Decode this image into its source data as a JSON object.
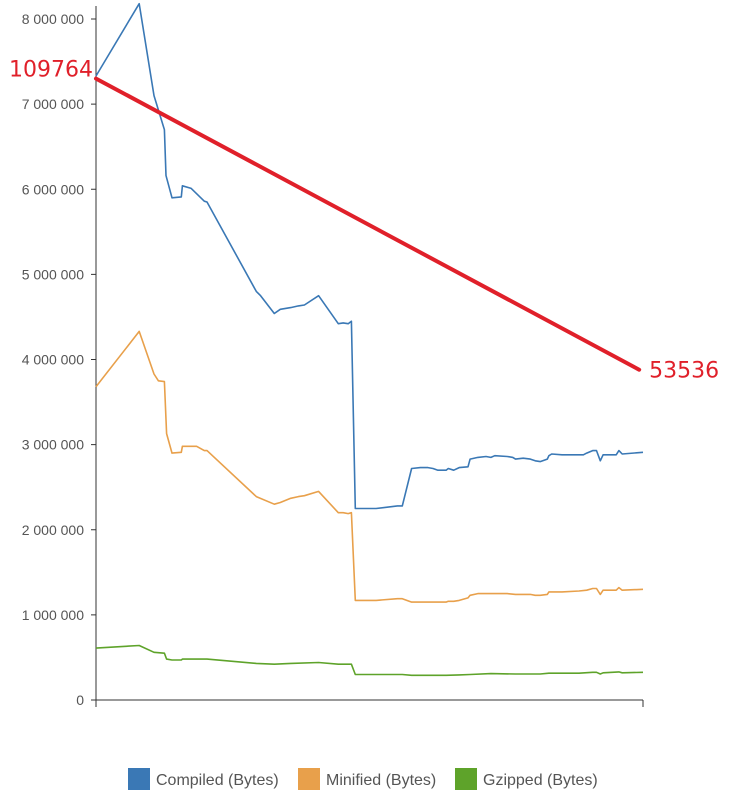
{
  "chart_data": {
    "type": "line",
    "xlim": [
      0,
      100
    ],
    "ylim": [
      0,
      8000000
    ],
    "yticks": [
      0,
      1000000,
      2000000,
      3000000,
      4000000,
      5000000,
      6000000,
      7000000,
      8000000
    ],
    "ytick_labels": [
      "0",
      "1 000 000",
      "2 000 000",
      "3 000 000",
      "4 000 000",
      "5 000 000",
      "6 000 000",
      "7 000 000",
      "8 000 000"
    ],
    "grid": false,
    "legend_position": "bottom",
    "series": [
      {
        "name": "Compiled (Bytes)",
        "color": "#3a78b5",
        "points": [
          [
            0,
            7330000
          ],
          [
            7.9,
            8180000
          ],
          [
            10.6,
            7100000
          ],
          [
            12.5,
            6700000
          ],
          [
            12.8,
            6160000
          ],
          [
            13.9,
            5900000
          ],
          [
            15.6,
            5910000
          ],
          [
            15.8,
            6040000
          ],
          [
            17.4,
            6010000
          ],
          [
            19.8,
            5860000
          ],
          [
            20.3,
            5850000
          ],
          [
            29.3,
            4800000
          ],
          [
            30.1,
            4750000
          ],
          [
            32.6,
            4540000
          ],
          [
            33.7,
            4590000
          ],
          [
            35.6,
            4610000
          ],
          [
            37.0,
            4630000
          ],
          [
            38.1,
            4640000
          ],
          [
            40.7,
            4750000
          ],
          [
            44.3,
            4420000
          ],
          [
            45.2,
            4430000
          ],
          [
            46.1,
            4420000
          ],
          [
            46.7,
            4450000
          ],
          [
            47.4,
            2250000
          ],
          [
            51.2,
            2250000
          ],
          [
            55.1,
            2280000
          ],
          [
            56.0,
            2280000
          ],
          [
            57.7,
            2720000
          ],
          [
            59.3,
            2730000
          ],
          [
            60.7,
            2730000
          ],
          [
            61.6,
            2720000
          ],
          [
            62.5,
            2700000
          ],
          [
            64.0,
            2700000
          ],
          [
            64.4,
            2720000
          ],
          [
            65.4,
            2700000
          ],
          [
            66.4,
            2730000
          ],
          [
            68.0,
            2740000
          ],
          [
            68.4,
            2830000
          ],
          [
            69.8,
            2850000
          ],
          [
            71.3,
            2860000
          ],
          [
            72.2,
            2850000
          ],
          [
            72.9,
            2870000
          ],
          [
            75.2,
            2860000
          ],
          [
            76.2,
            2850000
          ],
          [
            76.7,
            2830000
          ],
          [
            78.1,
            2840000
          ],
          [
            79.4,
            2830000
          ],
          [
            80.3,
            2810000
          ],
          [
            81.2,
            2800000
          ],
          [
            82.5,
            2830000
          ],
          [
            82.8,
            2870000
          ],
          [
            83.3,
            2890000
          ],
          [
            85.2,
            2880000
          ],
          [
            88.3,
            2880000
          ],
          [
            89.1,
            2880000
          ],
          [
            89.7,
            2900000
          ],
          [
            90.8,
            2930000
          ],
          [
            91.5,
            2930000
          ],
          [
            92.2,
            2810000
          ],
          [
            92.7,
            2880000
          ],
          [
            95.1,
            2880000
          ],
          [
            95.6,
            2930000
          ],
          [
            96.2,
            2890000
          ],
          [
            100,
            2910000
          ]
        ]
      },
      {
        "name": "Minified (Bytes)",
        "color": "#e8a04b",
        "points": [
          [
            0,
            3680000
          ],
          [
            7.9,
            4330000
          ],
          [
            10.6,
            3830000
          ],
          [
            11.4,
            3750000
          ],
          [
            12.5,
            3740000
          ],
          [
            12.9,
            3130000
          ],
          [
            13.9,
            2900000
          ],
          [
            15.6,
            2910000
          ],
          [
            15.8,
            2980000
          ],
          [
            18.4,
            2980000
          ],
          [
            19.8,
            2930000
          ],
          [
            20.3,
            2930000
          ],
          [
            29.3,
            2390000
          ],
          [
            32.6,
            2300000
          ],
          [
            33.7,
            2320000
          ],
          [
            35.6,
            2370000
          ],
          [
            37.0,
            2390000
          ],
          [
            38.1,
            2400000
          ],
          [
            40.7,
            2450000
          ],
          [
            44.3,
            2200000
          ],
          [
            45.2,
            2200000
          ],
          [
            46.1,
            2190000
          ],
          [
            46.7,
            2200000
          ],
          [
            47.4,
            1170000
          ],
          [
            51.2,
            1170000
          ],
          [
            55.1,
            1190000
          ],
          [
            56.0,
            1190000
          ],
          [
            57.7,
            1150000
          ],
          [
            61.6,
            1150000
          ],
          [
            64.0,
            1150000
          ],
          [
            64.4,
            1160000
          ],
          [
            65.4,
            1160000
          ],
          [
            66.4,
            1170000
          ],
          [
            68.0,
            1200000
          ],
          [
            68.4,
            1230000
          ],
          [
            69.8,
            1250000
          ],
          [
            72.2,
            1250000
          ],
          [
            75.2,
            1250000
          ],
          [
            76.7,
            1240000
          ],
          [
            79.4,
            1240000
          ],
          [
            80.3,
            1230000
          ],
          [
            81.2,
            1230000
          ],
          [
            82.5,
            1240000
          ],
          [
            82.8,
            1270000
          ],
          [
            85.2,
            1270000
          ],
          [
            88.3,
            1280000
          ],
          [
            89.7,
            1290000
          ],
          [
            90.8,
            1310000
          ],
          [
            91.5,
            1310000
          ],
          [
            92.2,
            1240000
          ],
          [
            92.7,
            1290000
          ],
          [
            95.1,
            1290000
          ],
          [
            95.6,
            1320000
          ],
          [
            96.2,
            1290000
          ],
          [
            100,
            1300000
          ]
        ]
      },
      {
        "name": "Gzipped (Bytes)",
        "color": "#5ea32a",
        "points": [
          [
            0,
            610000
          ],
          [
            7.9,
            640000
          ],
          [
            10.6,
            560000
          ],
          [
            12.5,
            550000
          ],
          [
            12.9,
            480000
          ],
          [
            13.9,
            470000
          ],
          [
            15.6,
            470000
          ],
          [
            15.8,
            480000
          ],
          [
            20.3,
            480000
          ],
          [
            29.3,
            430000
          ],
          [
            32.6,
            420000
          ],
          [
            35.6,
            430000
          ],
          [
            40.7,
            440000
          ],
          [
            44.3,
            420000
          ],
          [
            46.7,
            420000
          ],
          [
            47.4,
            300000
          ],
          [
            51.2,
            300000
          ],
          [
            55.1,
            300000
          ],
          [
            56.0,
            300000
          ],
          [
            57.7,
            290000
          ],
          [
            64.0,
            290000
          ],
          [
            66.4,
            295000
          ],
          [
            68.4,
            300000
          ],
          [
            72.2,
            310000
          ],
          [
            76.7,
            305000
          ],
          [
            81.2,
            305000
          ],
          [
            82.8,
            315000
          ],
          [
            88.3,
            315000
          ],
          [
            90.8,
            325000
          ],
          [
            91.5,
            325000
          ],
          [
            92.2,
            305000
          ],
          [
            92.7,
            320000
          ],
          [
            95.6,
            330000
          ],
          [
            96.2,
            320000
          ],
          [
            100,
            325000
          ]
        ]
      }
    ],
    "annotation": {
      "color": "#e0202a",
      "start_label": "109764",
      "end_label": "53536",
      "start": [
        0,
        7300000
      ],
      "end": [
        99.3,
        3880000
      ]
    }
  }
}
